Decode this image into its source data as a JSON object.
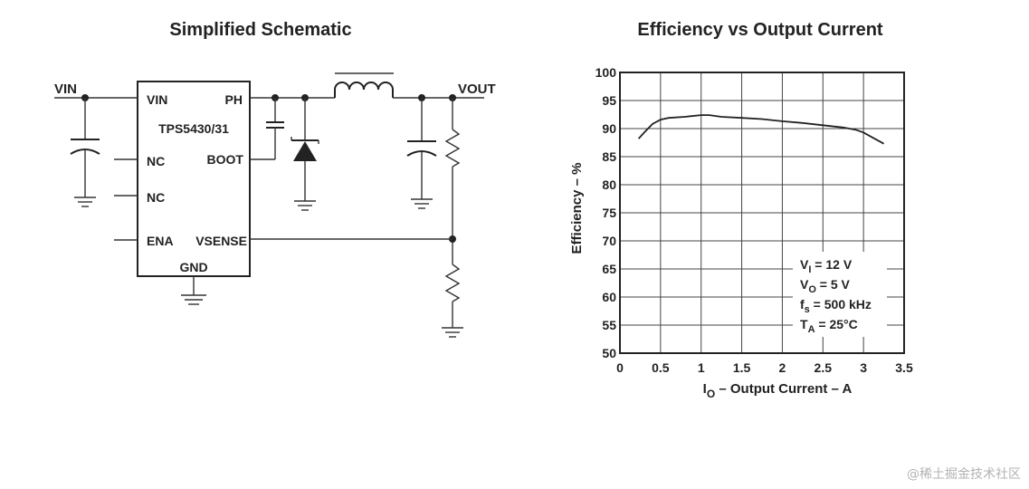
{
  "schematic": {
    "title": "Simplified Schematic",
    "chip": {
      "name": "TPS5430/31",
      "pins": {
        "vin": "VIN",
        "ph": "PH",
        "nc1": "NC",
        "boot": "BOOT",
        "nc2": "NC",
        "ena": "ENA",
        "vsense": "VSENSE",
        "gnd": "GND"
      }
    },
    "nets": {
      "vin": "VIN",
      "vout": "VOUT"
    }
  },
  "chart_data": {
    "type": "line",
    "title": "Efficiency vs Output Current",
    "xlabel_sub": "O",
    "xlabel_main": " – Output Current – A",
    "ylabel": "Efficiency – %",
    "xlim": [
      0,
      3.5
    ],
    "ylim": [
      50,
      100
    ],
    "x_ticks": [
      "0",
      "0.5",
      "1",
      "1.5",
      "2",
      "2.5",
      "3",
      "3.5"
    ],
    "y_ticks": [
      "50",
      "55",
      "60",
      "65",
      "70",
      "75",
      "80",
      "85",
      "90",
      "95",
      "100"
    ],
    "grid": true,
    "series": [
      {
        "x": [
          0.23,
          0.3,
          0.4,
          0.5,
          0.6,
          0.8,
          1.0,
          1.1,
          1.25,
          1.5,
          1.75,
          2.0,
          2.25,
          2.5,
          2.75,
          2.9,
          3.0,
          3.1,
          3.25
        ],
        "y": [
          88.2,
          89.3,
          90.8,
          91.6,
          91.9,
          92.1,
          92.4,
          92.4,
          92.1,
          91.9,
          91.7,
          91.3,
          91.0,
          90.6,
          90.2,
          89.8,
          89.3,
          88.5,
          87.3
        ]
      }
    ],
    "conditions": [
      {
        "main": "V",
        "sub": "I",
        "rest": " = 12 V"
      },
      {
        "main": "V",
        "sub": "O",
        "rest": " = 5 V"
      },
      {
        "main": "f",
        "sub": "s",
        "rest": " = 500 kHz"
      },
      {
        "main": "T",
        "sub": "A",
        "rest": " = 25°C"
      }
    ],
    "colors": {
      "line": "#222222",
      "grid": "#444444"
    }
  },
  "watermark": "@稀土掘金技术社区"
}
